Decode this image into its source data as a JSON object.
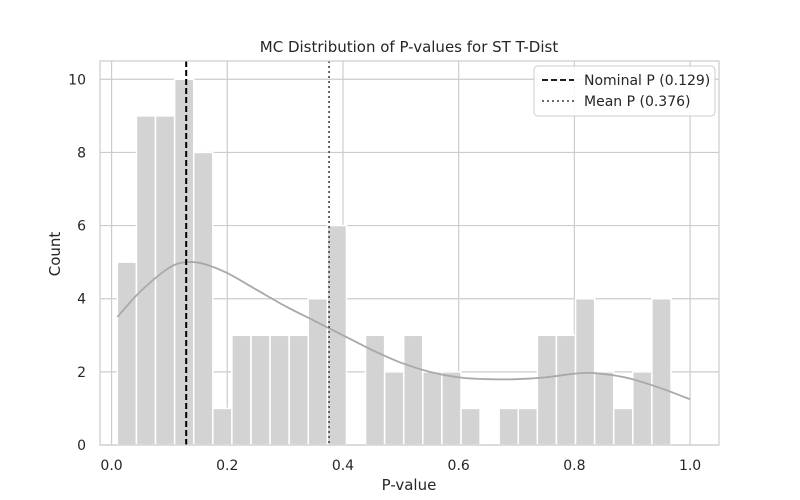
{
  "chart_data": {
    "type": "bar",
    "title": "MC Distribution of P-values for ST T-Dist",
    "xlabel": "P-value",
    "ylabel": "Count",
    "xlim": [
      -0.02,
      1.05
    ],
    "ylim": [
      0,
      10.5
    ],
    "xticks": [
      "0.0",
      "0.2",
      "0.4",
      "0.6",
      "0.8",
      "1.0"
    ],
    "yticks": [
      "0",
      "2",
      "4",
      "6",
      "8",
      "10"
    ],
    "grid": true,
    "legend_position": "top-right",
    "bin_start": 0.01,
    "bin_width": 0.033,
    "counts": [
      5,
      9,
      9,
      10,
      8,
      1,
      3,
      3,
      3,
      3,
      4,
      6,
      0,
      3,
      2,
      3,
      2,
      2,
      1,
      0,
      1,
      1,
      3,
      3,
      4,
      2,
      1,
      2,
      4
    ],
    "kde": [
      [
        0.01,
        3.5
      ],
      [
        0.05,
        4.2
      ],
      [
        0.1,
        4.85
      ],
      [
        0.13,
        5.0
      ],
      [
        0.16,
        4.95
      ],
      [
        0.2,
        4.7
      ],
      [
        0.25,
        4.25
      ],
      [
        0.3,
        3.8
      ],
      [
        0.35,
        3.4
      ],
      [
        0.4,
        3.0
      ],
      [
        0.45,
        2.6
      ],
      [
        0.5,
        2.25
      ],
      [
        0.55,
        2.0
      ],
      [
        0.6,
        1.85
      ],
      [
        0.65,
        1.8
      ],
      [
        0.7,
        1.8
      ],
      [
        0.75,
        1.85
      ],
      [
        0.8,
        1.95
      ],
      [
        0.83,
        1.97
      ],
      [
        0.87,
        1.9
      ],
      [
        0.9,
        1.8
      ],
      [
        0.95,
        1.55
      ],
      [
        1.0,
        1.25
      ]
    ],
    "lines": [
      {
        "name": "Nominal P (0.129)",
        "x": 0.129,
        "style": "dashed",
        "color": "#000000"
      },
      {
        "name": "Mean P (0.376)",
        "x": 0.376,
        "style": "dotted",
        "color": "#555555"
      }
    ],
    "colors": {
      "bar": "#d3d3d3",
      "kde": "#a9a9a9",
      "grid": "#cccccc",
      "axis": "#cccccc"
    }
  }
}
